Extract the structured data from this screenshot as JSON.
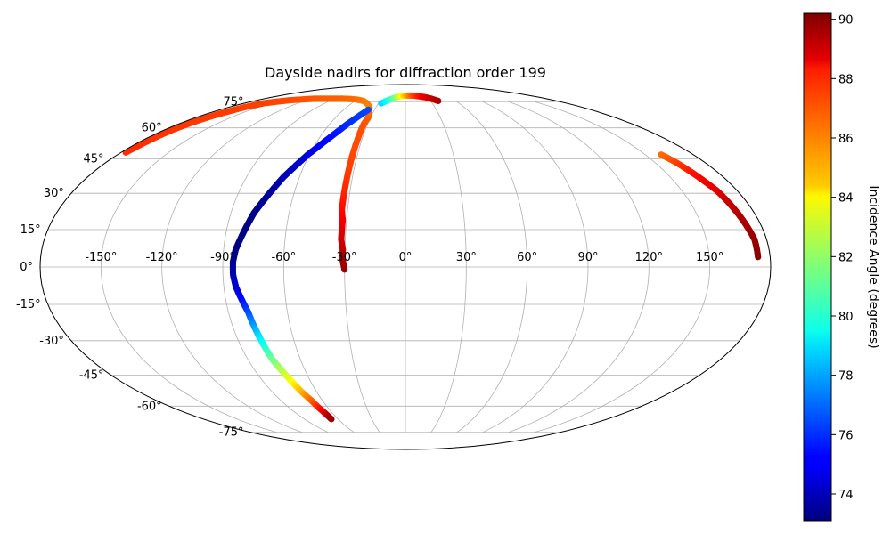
{
  "chart_data": {
    "type": "scatter",
    "projection": "mollweide",
    "title": "Dayside nadirs for diffraction order 199",
    "grid": true,
    "lon_ticks": [
      -150,
      -120,
      -90,
      -60,
      -30,
      0,
      30,
      60,
      90,
      120,
      150
    ],
    "lat_ticks": [
      -75,
      -60,
      -45,
      -30,
      -15,
      0,
      15,
      30,
      45,
      60,
      75
    ],
    "lon_tick_labels": [
      "-150°",
      "-120°",
      "-90°",
      "-60°",
      "-30°",
      "0°",
      "30°",
      "60°",
      "90°",
      "120°",
      "150°"
    ],
    "lat_tick_labels": [
      "-75°",
      "-60°",
      "-45°",
      "-30°",
      "-15°",
      "0°",
      "15°",
      "30°",
      "45°",
      "60°",
      "75°"
    ],
    "colorbar": {
      "label": "Incidence Angle (degrees)",
      "colormap": "jet",
      "range": [
        73.1,
        90.2
      ],
      "ticks": [
        74,
        76,
        78,
        80,
        82,
        84,
        86,
        88,
        90
      ],
      "tick_labels": [
        "74",
        "76",
        "78",
        "80",
        "82",
        "84",
        "86",
        "88",
        "90"
      ]
    },
    "series": [
      {
        "points": [
          [
            -30,
            -1,
            89.8
          ],
          [
            -31,
            3,
            89.5
          ],
          [
            -31,
            7,
            89.2
          ],
          [
            -32,
            11,
            88.9
          ],
          [
            -32,
            15,
            88.6
          ],
          [
            -32,
            19,
            88.3
          ],
          [
            -33,
            23,
            88.0
          ],
          [
            -33,
            27,
            87.7
          ],
          [
            -33,
            31,
            87.5
          ],
          [
            -33,
            35,
            87.3
          ],
          [
            -33,
            39,
            87.1
          ],
          [
            -33,
            43,
            87.0
          ],
          [
            -33,
            47,
            86.9
          ],
          [
            -33,
            51,
            86.8
          ],
          [
            -33,
            55,
            86.8
          ],
          [
            -33,
            59,
            86.7
          ],
          [
            -33,
            62,
            86.7
          ],
          [
            -32,
            65,
            86.6
          ]
        ]
      },
      {
        "points": [
          [
            -32,
            66,
            86.5
          ],
          [
            -36,
            71,
            86.2
          ],
          [
            -40,
            73,
            86.0
          ],
          [
            -45,
            74.5,
            85.9
          ],
          [
            -50,
            75.5,
            86.0
          ],
          [
            -55,
            76,
            86.1
          ],
          [
            -62,
            76.5,
            86.2
          ],
          [
            -70,
            76.8,
            86.3
          ],
          [
            -80,
            77,
            86.4
          ],
          [
            -92,
            77,
            86.5
          ],
          [
            -104,
            77,
            86.5
          ],
          [
            -116,
            77,
            86.6
          ],
          [
            -128,
            76.5,
            86.7
          ],
          [
            -140,
            76,
            86.8
          ],
          [
            -150,
            75,
            86.9
          ],
          [
            -158,
            74,
            87.0
          ],
          [
            -164,
            71.5,
            87.0
          ],
          [
            -169,
            67,
            87.1
          ],
          [
            -172,
            63,
            87.1
          ],
          [
            -174,
            59,
            87.2
          ],
          [
            -175,
            55,
            87.2
          ],
          [
            -176,
            51,
            87.3
          ],
          [
            -177,
            48,
            87.3
          ]
        ]
      },
      {
        "points": [
          [
            -36,
            70,
            76.5
          ],
          [
            -40,
            67,
            76.3
          ],
          [
            -46,
            62,
            76.0
          ],
          [
            -51,
            57,
            75.6
          ],
          [
            -56,
            52,
            75.2
          ],
          [
            -61,
            47,
            74.8
          ],
          [
            -65,
            42,
            74.4
          ],
          [
            -69,
            37,
            74.0
          ],
          [
            -72,
            32,
            73.7
          ],
          [
            -75,
            27,
            73.5
          ],
          [
            -78,
            22,
            73.3
          ],
          [
            -80,
            17,
            73.2
          ],
          [
            -82,
            12,
            73.1
          ],
          [
            -84,
            7,
            73.2
          ],
          [
            -85,
            2,
            73.4
          ],
          [
            -85,
            -3,
            73.8
          ],
          [
            -84,
            -8,
            74.4
          ],
          [
            -82,
            -13,
            75.3
          ],
          [
            -80,
            -18,
            76.4
          ],
          [
            -79,
            -23,
            77.6
          ],
          [
            -78,
            -28,
            78.9
          ],
          [
            -77,
            -33,
            80.1
          ],
          [
            -76,
            -38,
            81.3
          ],
          [
            -74,
            -43,
            82.5
          ],
          [
            -72,
            -48,
            83.7
          ],
          [
            -70,
            -53,
            85.0
          ],
          [
            -68,
            -57,
            86.3
          ],
          [
            -67,
            -61,
            87.6
          ],
          [
            -66,
            -64,
            88.8
          ],
          [
            -66,
            -67,
            89.8
          ]
        ]
      },
      {
        "points": [
          [
            -27,
            74,
            78.8
          ],
          [
            -21,
            76,
            79.8
          ],
          [
            -15,
            77.5,
            81.2
          ],
          [
            -9,
            78.5,
            82.8
          ],
          [
            -3,
            79,
            84.2
          ],
          [
            3,
            79.2,
            85.5
          ],
          [
            9,
            79.2,
            86.5
          ],
          [
            15,
            79,
            87.3
          ],
          [
            21,
            78.5,
            88.0
          ],
          [
            27,
            78,
            88.5
          ],
          [
            33,
            77,
            89.0
          ],
          [
            39,
            75.5,
            89.4
          ]
        ]
      },
      {
        "points": [
          [
            160,
            47,
            86.2
          ],
          [
            163,
            43,
            87.0
          ],
          [
            165,
            39,
            87.7
          ],
          [
            167,
            35,
            88.2
          ],
          [
            169,
            31,
            88.6
          ],
          [
            170,
            27,
            88.9
          ],
          [
            171,
            23,
            89.2
          ],
          [
            172,
            19,
            89.4
          ],
          [
            173,
            15,
            89.6
          ],
          [
            174,
            11,
            89.8
          ],
          [
            174,
            7,
            89.9
          ],
          [
            174,
            4,
            90.0
          ]
        ]
      }
    ]
  }
}
